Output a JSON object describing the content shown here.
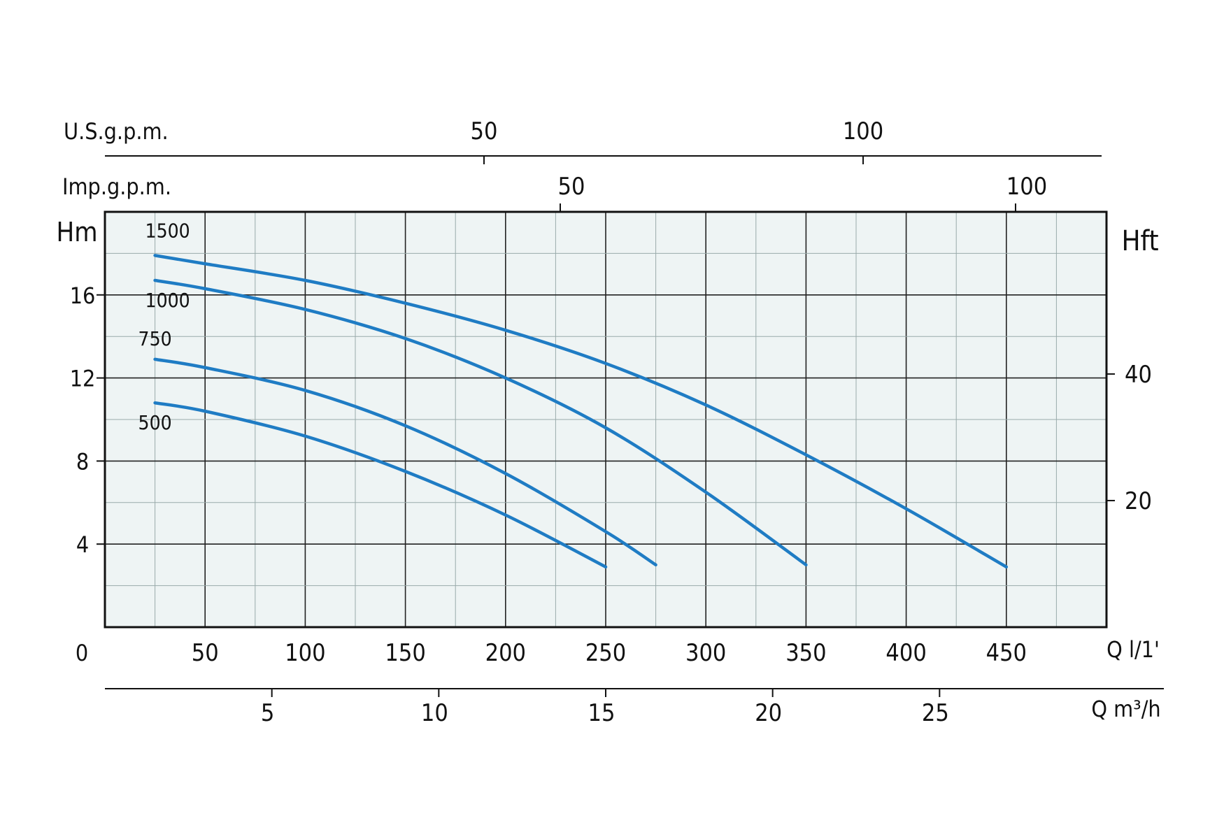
{
  "chart_data": {
    "type": "line",
    "x": {
      "label": "Q l/1'",
      "ticks": [
        0,
        50,
        100,
        150,
        200,
        250,
        300,
        350,
        400,
        450
      ],
      "range": [
        0,
        500
      ]
    },
    "y": {
      "label": "Hm",
      "ticks": [
        0,
        4,
        8,
        12,
        16
      ],
      "range": [
        0,
        20
      ]
    },
    "y_right": {
      "label": "Hft",
      "ticks": [
        20,
        40
      ]
    },
    "x_top_us": {
      "label": "U.S.g.p.m.",
      "ticks": [
        50,
        100
      ]
    },
    "x_top_imp": {
      "label": "Imp.g.p.m.",
      "ticks": [
        50,
        100
      ]
    },
    "x_bottom_m3h": {
      "label": "Q m³/h",
      "ticks": [
        5,
        10,
        15,
        20,
        25
      ]
    },
    "grid": true,
    "series": [
      {
        "name": "1500",
        "color": "#1f7cc4",
        "x": [
          25,
          50,
          100,
          150,
          200,
          250,
          300,
          350,
          400,
          450
        ],
        "y": [
          17.9,
          17.5,
          16.7,
          15.6,
          14.3,
          12.7,
          10.7,
          8.3,
          5.7,
          2.9
        ]
      },
      {
        "name": "1000",
        "color": "#1f7cc4",
        "x": [
          25,
          50,
          100,
          150,
          200,
          250,
          300,
          350
        ],
        "y": [
          16.7,
          16.3,
          15.3,
          13.9,
          12.0,
          9.6,
          6.5,
          3.0
        ]
      },
      {
        "name": "750",
        "color": "#1f7cc4",
        "x": [
          25,
          50,
          100,
          150,
          200,
          250,
          275
        ],
        "y": [
          12.9,
          12.5,
          11.4,
          9.7,
          7.4,
          4.6,
          3.0
        ]
      },
      {
        "name": "500",
        "color": "#1f7cc4",
        "x": [
          25,
          50,
          100,
          150,
          200,
          250
        ],
        "y": [
          10.8,
          10.4,
          9.2,
          7.5,
          5.4,
          2.9
        ]
      }
    ]
  }
}
